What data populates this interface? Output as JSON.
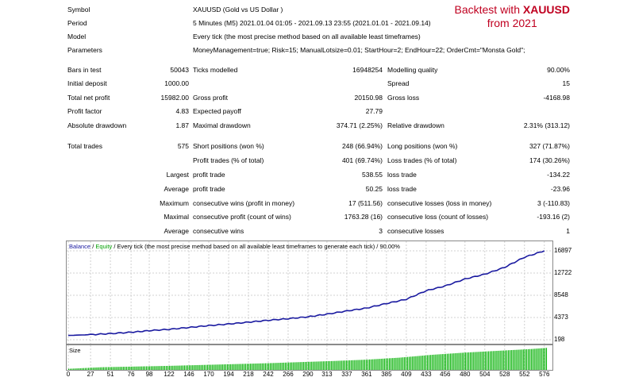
{
  "overlay": {
    "line1_prefix": "Backtest with ",
    "line1_symbol": "XAUUSD",
    "line2": "from 2021"
  },
  "info_rows": [
    {
      "label": "Symbol",
      "value": "XAUUSD (Gold vs US Dollar )"
    },
    {
      "label": "Period",
      "value": "5 Minutes (M5) 2021.01.04 01:05 - 2021.09.13 23:55 (2021.01.01 - 2021.09.14)"
    },
    {
      "label": "Model",
      "value": "Every tick (the most precise method based on all available least timeframes)"
    },
    {
      "label": "Parameters",
      "value": "MoneyManagement=true; Risk=15; ManualLotsize=0.01; StartHour=2; EndHour=22; OrderCmt=\"Monsta Gold\";"
    }
  ],
  "stats": {
    "bars_label": "Bars in test",
    "bars_value": "50043",
    "ticks_label": "Ticks modelled",
    "ticks_value": "16948254",
    "quality_label": "Modelling quality",
    "quality_value": "90.00%",
    "deposit_label": "Initial deposit",
    "deposit_value": "1000.00",
    "spread_label": "Spread",
    "spread_value": "15",
    "netprofit_label": "Total net profit",
    "netprofit_value": "15982.00",
    "grossprofit_label": "Gross profit",
    "grossprofit_value": "20150.98",
    "grossloss_label": "Gross loss",
    "grossloss_value": "-4168.98",
    "pf_label": "Profit factor",
    "pf_value": "4.83",
    "payoff_label": "Expected payoff",
    "payoff_value": "27.79",
    "absdd_label": "Absolute drawdown",
    "absdd_value": "1.87",
    "maxdd_label": "Maximal drawdown",
    "maxdd_value": "374.71 (2.25%)",
    "reldd_label": "Relative drawdown",
    "reldd_value": "2.31% (313.12)",
    "trades_label": "Total trades",
    "trades_value": "575",
    "short_label": "Short positions (won %)",
    "short_value": "248 (66.94%)",
    "long_label": "Long positions (won %)",
    "long_value": "327 (71.87%)",
    "profit_trades_label": "Profit trades (% of total)",
    "profit_trades_value": "401 (69.74%)",
    "loss_trades_label": "Loss trades (% of total)",
    "loss_trades_value": "174 (30.26%)",
    "largest_prefix": "Largest",
    "largest_profit_label": "profit trade",
    "largest_profit_value": "538.55",
    "largest_loss_label": "loss trade",
    "largest_loss_value": "-134.22",
    "average_prefix": "Average",
    "average_profit_label": "profit trade",
    "average_profit_value": "50.25",
    "average_loss_label": "loss trade",
    "average_loss_value": "-23.96",
    "maximum_prefix": "Maximum",
    "max_wins_label": "consecutive wins (profit in money)",
    "max_wins_value": "17 (511.56)",
    "max_losses_label": "consecutive losses (loss in money)",
    "max_losses_value": "3 (-110.83)",
    "maximal_prefix": "Maximal",
    "maximal_profit_label": "consecutive profit (count of wins)",
    "maximal_profit_value": "1763.28 (16)",
    "maximal_loss_label": "consecutive loss (count of losses)",
    "maximal_loss_value": "-193.16 (2)",
    "avg2_prefix": "Average",
    "avg_wins_label": "consecutive wins",
    "avg_wins_value": "3",
    "avg_losses_label": "consecutive losses",
    "avg_losses_value": "1"
  },
  "legend": {
    "balance": "Balance",
    "sep": " / ",
    "equity": "Equity",
    "rest": " / Every tick (the most precise method based on all available least timeframes to generate each tick) / 90.00%"
  },
  "size_label": "Size",
  "colors": {
    "balance": "#1a1aa0",
    "equity": "#00a000",
    "volume": "#00b000",
    "grid": "#d0d0d0",
    "overlay": "#c00020"
  },
  "chart_data": {
    "type": "line",
    "series": [
      {
        "name": "Balance",
        "x": [
          0,
          27,
          51,
          76,
          98,
          122,
          146,
          170,
          194,
          218,
          242,
          266,
          290,
          313,
          337,
          361,
          385,
          409,
          433,
          456,
          480,
          504,
          528,
          552,
          576
        ],
        "values": [
          1000,
          1150,
          1350,
          1600,
          1900,
          2150,
          2500,
          2850,
          3150,
          3500,
          3850,
          4150,
          4500,
          5000,
          5600,
          6150,
          7000,
          7800,
          9400,
          10300,
          11600,
          12500,
          13800,
          15700,
          16900
        ]
      }
    ],
    "yticks": [
      16897,
      12722,
      8548,
      4373,
      198
    ],
    "xticks": [
      0,
      27,
      51,
      76,
      98,
      122,
      146,
      170,
      194,
      218,
      242,
      266,
      290,
      313,
      337,
      361,
      385,
      409,
      433,
      456,
      480,
      504,
      528,
      552,
      576
    ],
    "ylim": [
      198,
      16897
    ],
    "xlim": [
      0,
      582
    ],
    "volume": {
      "name": "Size",
      "x": [
        0,
        40,
        80,
        120,
        160,
        200,
        240,
        280,
        320,
        360,
        400,
        440,
        480,
        520,
        560,
        582
      ],
      "values": [
        0.05,
        0.12,
        0.15,
        0.18,
        0.22,
        0.26,
        0.3,
        0.35,
        0.4,
        0.46,
        0.55,
        0.68,
        0.78,
        0.86,
        0.94,
        1.0
      ]
    }
  }
}
